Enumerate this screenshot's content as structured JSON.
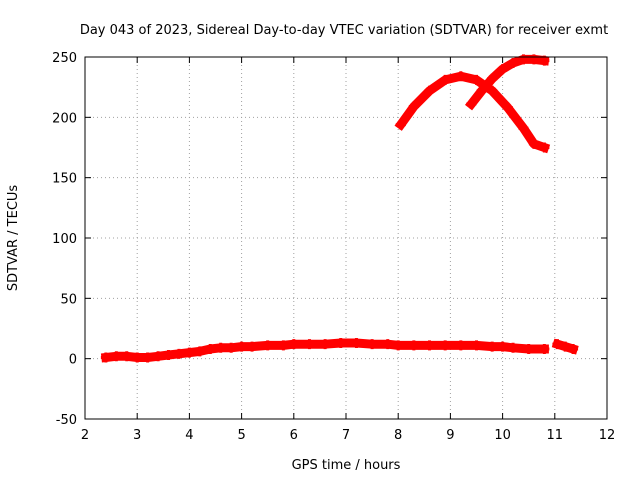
{
  "chart_data": {
    "type": "scatter",
    "title": "Day 043 of 2023, Sidereal Day-to-day VTEC variation (SDTVAR) for receiver exmt",
    "xlabel": "GPS time / hours",
    "ylabel": "SDTVAR / TECUs",
    "xlim": [
      2,
      12
    ],
    "ylim": [
      -50,
      250
    ],
    "xticks": [
      "2",
      "3",
      "4",
      "5",
      "6",
      "7",
      "8",
      "9",
      "10",
      "11",
      "12"
    ],
    "yticks": [
      "-50",
      "0",
      "50",
      "100",
      "150",
      "200",
      "250"
    ],
    "grid": true,
    "series": [
      {
        "color": "#ff0000",
        "x": [
          2.4,
          2.6,
          2.8,
          3.0,
          3.2,
          3.4,
          3.6,
          3.8,
          4.0,
          4.2,
          4.4,
          4.6,
          4.8,
          5.0,
          5.2,
          5.5,
          5.8,
          6.0,
          6.3,
          6.6,
          6.9,
          7.2,
          7.5,
          7.8,
          8.0,
          8.3,
          8.6,
          8.9,
          9.2,
          9.5,
          9.8,
          10.0,
          10.2,
          10.5,
          10.8
        ],
        "y": [
          1,
          2,
          2,
          1,
          1,
          2,
          3,
          4,
          5,
          6,
          8,
          9,
          9,
          10,
          10,
          11,
          11,
          12,
          12,
          12,
          13,
          13,
          12,
          12,
          11,
          11,
          11,
          11,
          11,
          11,
          10,
          10,
          9,
          8,
          8
        ]
      },
      {
        "color": "#ff0000",
        "x": [
          11.05,
          11.2,
          11.35
        ],
        "y": [
          12,
          10,
          8
        ]
      },
      {
        "color": "#ff0000",
        "x": [
          8.05,
          8.3,
          8.6,
          8.9,
          9.2,
          9.5,
          9.8,
          10.1,
          10.4,
          10.6,
          10.8
        ],
        "y": [
          194,
          209,
          222,
          231,
          234,
          231,
          222,
          208,
          191,
          178,
          175
        ]
      },
      {
        "color": "#ff0000",
        "x": [
          9.4,
          9.6,
          9.8,
          10.0,
          10.2,
          10.4,
          10.6,
          10.8
        ],
        "y": [
          211,
          222,
          232,
          240,
          245,
          248,
          248,
          247
        ]
      }
    ]
  }
}
